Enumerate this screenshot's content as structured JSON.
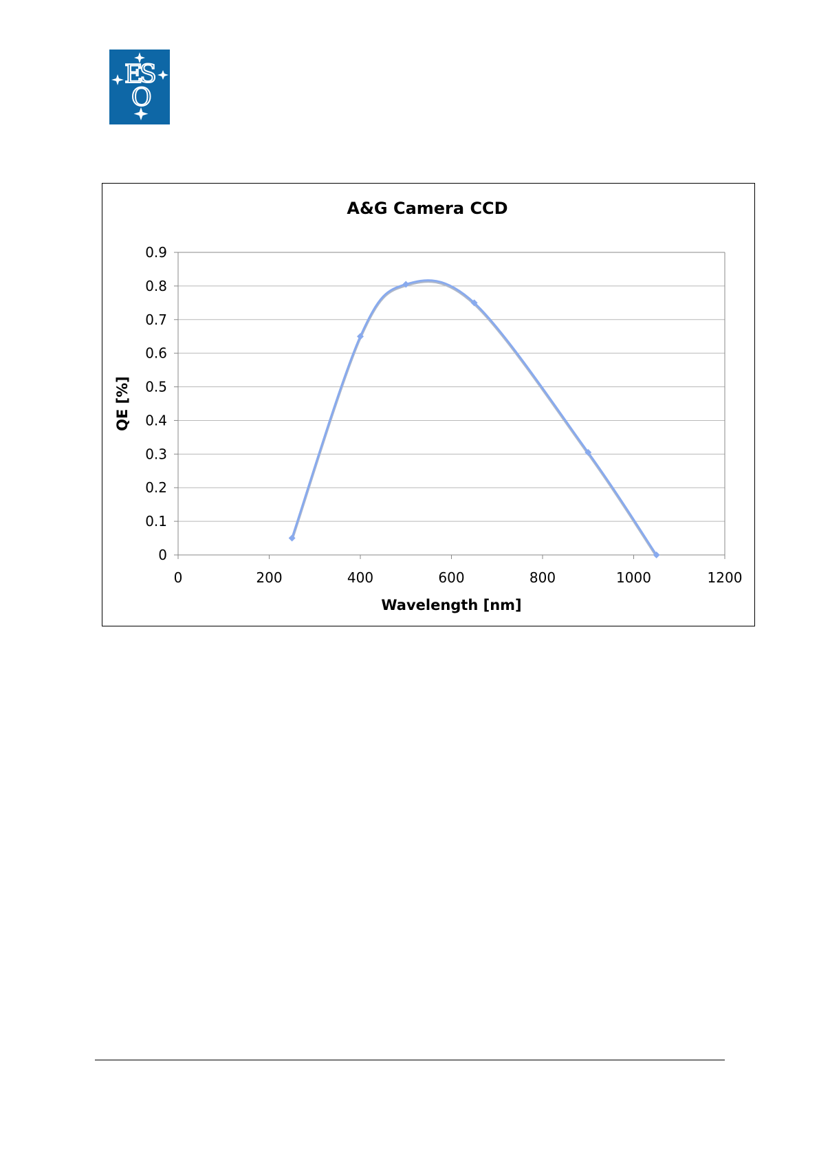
{
  "logo": {
    "text": "ESO",
    "color": "#0e67a6"
  },
  "chart_data": {
    "type": "line",
    "title": "A&G Camera CCD",
    "xlabel": "Wavelength [nm]",
    "ylabel": "QE [%]",
    "xlim": [
      0,
      1200
    ],
    "ylim": [
      0,
      0.9
    ],
    "xticks": [
      0,
      200,
      400,
      600,
      800,
      1000,
      1200
    ],
    "yticks": [
      0,
      0.1,
      0.2,
      0.3,
      0.4,
      0.5,
      0.6,
      0.7,
      0.8,
      0.9
    ],
    "ytick_labels": [
      "0",
      "0.1",
      "0.2",
      "0.3",
      "0.4",
      "0.5",
      "0.6",
      "0.7",
      "0.8",
      "0.9"
    ],
    "grid": "horizontal",
    "smooth": true,
    "series": [
      {
        "color": "#88aaee",
        "x": [
          250,
          400,
          500,
          650,
          900,
          1050
        ],
        "y": [
          0.05,
          0.65,
          0.805,
          0.75,
          0.305,
          0
        ]
      }
    ]
  }
}
